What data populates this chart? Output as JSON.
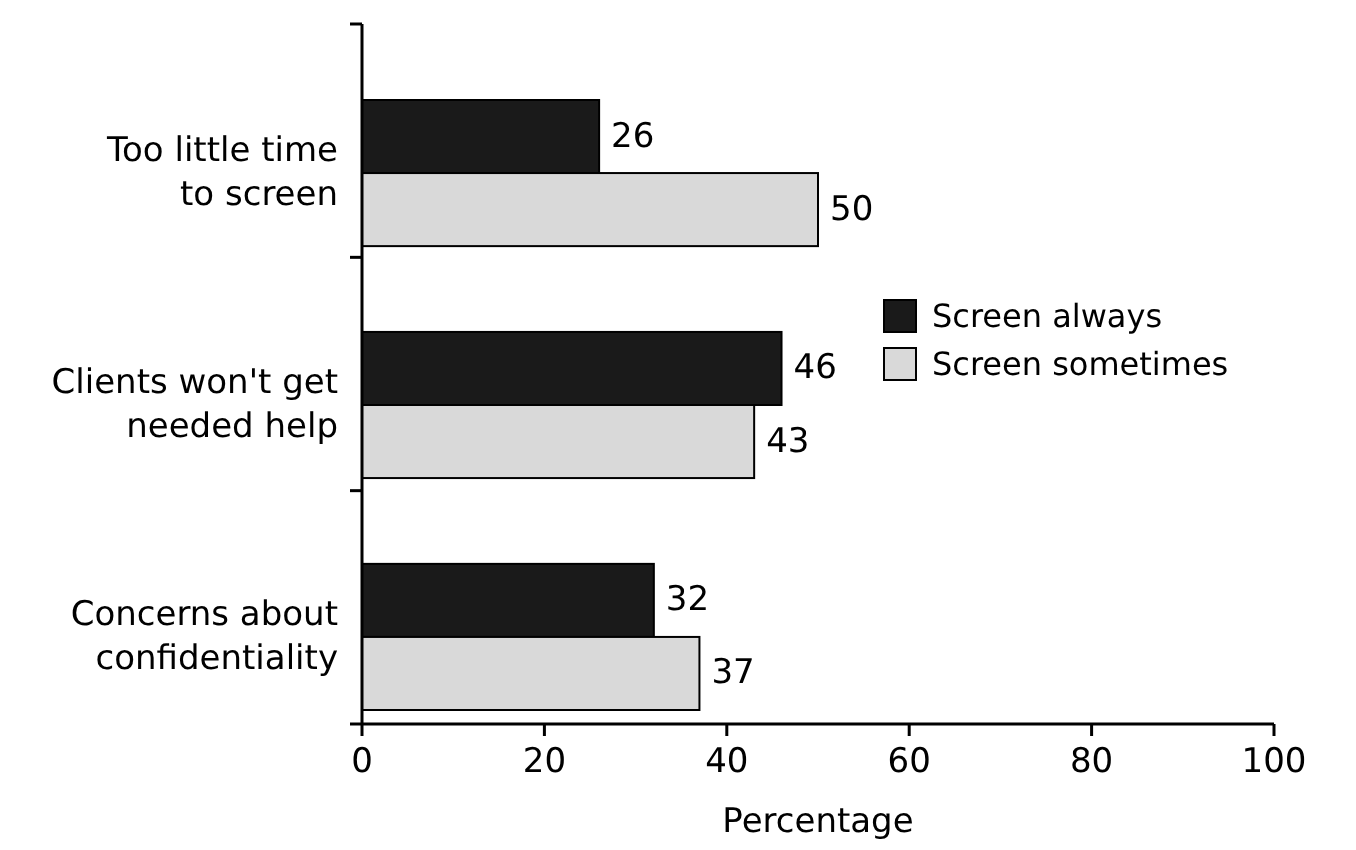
{
  "chart_data": {
    "type": "bar",
    "orientation": "horizontal",
    "xlabel": "Percentage",
    "categories": [
      "Too little time to screen",
      "Clients won't get needed help",
      "Concerns about confidentiality"
    ],
    "series": [
      {
        "name": "Screen always",
        "color": "#1a1a1a",
        "values": [
          26,
          46,
          32
        ]
      },
      {
        "name": "Screen sometimes",
        "color": "#d9d9d9",
        "values": [
          50,
          43,
          37
        ]
      }
    ],
    "xlim": [
      0,
      100
    ],
    "xticks": [
      0,
      20,
      40,
      60,
      80,
      100
    ],
    "data_labels": true,
    "grid": false,
    "legend": "right"
  }
}
